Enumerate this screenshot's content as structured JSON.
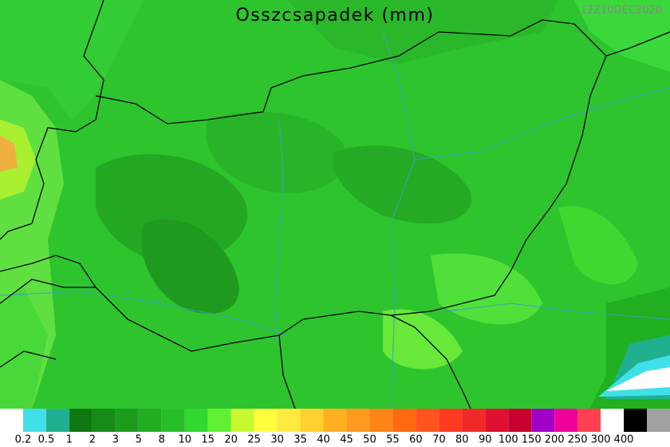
{
  "header": {
    "title": "Osszcsapadek (mm)",
    "timestamp": "12Z10DEC2020"
  },
  "legend": {
    "colors": [
      "#ffffff",
      "#40e0e8",
      "#20b090",
      "#107810",
      "#158a15",
      "#1c9c1c",
      "#22ac22",
      "#28be28",
      "#30d830",
      "#60f030",
      "#c8f830",
      "#ffff40",
      "#ffe840",
      "#ffd030",
      "#ffb020",
      "#ff9a20",
      "#ff8418",
      "#ff6a10",
      "#ff5420",
      "#ff3a20",
      "#f02828",
      "#e01030",
      "#c80030",
      "#a000c8",
      "#f0009a",
      "#ff4050",
      "#ffffff",
      "#000000",
      "#a0a0a0"
    ],
    "labels": [
      "0.2",
      "0.5",
      "1",
      "2",
      "3",
      "5",
      "8",
      "10",
      "15",
      "20",
      "25",
      "30",
      "35",
      "40",
      "45",
      "50",
      "55",
      "60",
      "70",
      "80",
      "90",
      "100",
      "150",
      "200",
      "250",
      "300",
      "400"
    ]
  }
}
